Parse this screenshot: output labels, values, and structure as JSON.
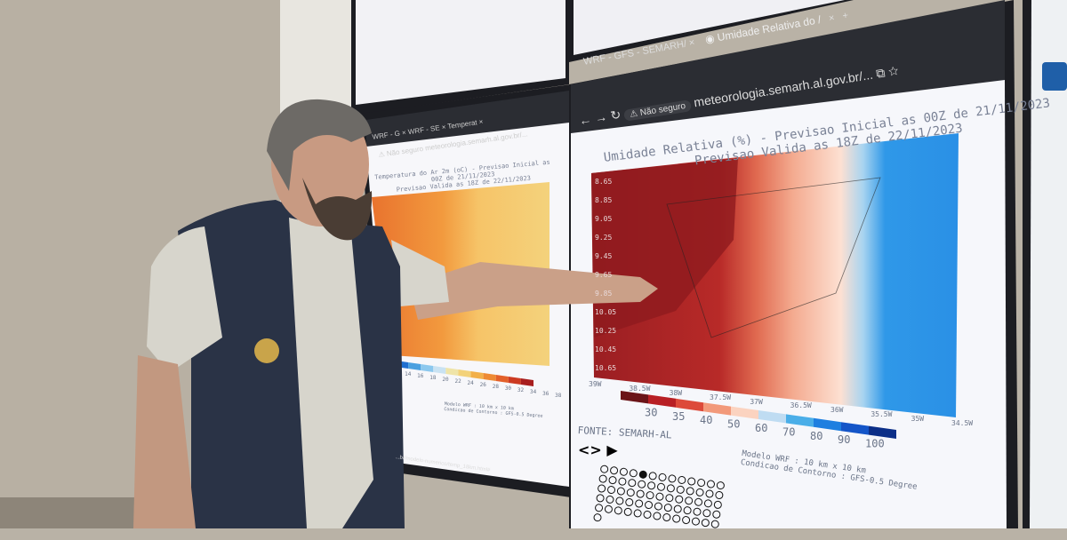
{
  "right_browser": {
    "tabs": [
      {
        "label": "WRF - GFS - SEMARH/"
      },
      {
        "label": "Umidade Relativa do /"
      }
    ],
    "security_label": "Não seguro",
    "url": "meteorologia.semarh.al.gov.br/...",
    "new_tab": "+",
    "close_tab": "×"
  },
  "right_chart": {
    "title_line1": "Umidade Relativa (%) - Previsao Inicial as 00Z de 21/11/2023",
    "title_line2": "Previsao Valida as 18Z de 22/11/2023",
    "x_ticks": [
      "39W",
      "38.5W",
      "38W",
      "37.5W",
      "37W",
      "36.5W",
      "36W",
      "35.5W",
      "35W",
      "34.5W"
    ],
    "y_ticks": [
      "8.65",
      "8.85",
      "9.05",
      "9.25",
      "9.45",
      "9.65",
      "9.85",
      "10.05",
      "10.25",
      "10.45",
      "10.65"
    ],
    "legend_values": [
      "30",
      "35",
      "40",
      "50",
      "60",
      "70",
      "80",
      "90",
      "100"
    ],
    "legend_colors": [
      "#6b1418",
      "#b81f24",
      "#dd4a3a",
      "#f2997a",
      "#fbd3c0",
      "#bfdcf2",
      "#4aaee8",
      "#1e7fe0",
      "#1455c8",
      "#0c2f88"
    ],
    "source": "FONTE: SEMARH-AL",
    "model_line": "Modelo WRF : 10 km x 10 km",
    "boundary_line": "Condicao de Contorno : GFS-0.5 Degree",
    "nav_prev": "<",
    "nav_next": ">",
    "play": "▶"
  },
  "left_browser": {
    "tabs": [
      {
        "label": "WRF - G"
      },
      {
        "label": "WRF - SE"
      },
      {
        "label": "Temperat"
      }
    ],
    "security_label": "Não seguro",
    "url": "meteorologia.semarh.al.gov.br/...",
    "status_url": "...br/modelo-numerico/temp_18km.html#"
  },
  "left_chart": {
    "title_line1": "Temperatura do Ar 2m (oC) - Previsao Inicial as 00Z de 21/11/2023",
    "title_line2": "Previsao Valida as 18Z de 22/11/2023",
    "legend_values": [
      "14",
      "16",
      "18",
      "20",
      "22",
      "24",
      "26",
      "28",
      "30",
      "32",
      "34",
      "36",
      "38"
    ],
    "legend_colors": [
      "#1f6fd0",
      "#4aa0e0",
      "#8cc8ee",
      "#c9e2f2",
      "#efe4a8",
      "#f3d27a",
      "#f2b04a",
      "#ee8a34",
      "#e3602a",
      "#cc3a22",
      "#a81e1e"
    ],
    "model_line": "Modelo WRF : 10 km x 10 km",
    "boundary_line": "Condicao de Contorno : GFS-0.5 Degree"
  },
  "colors": {
    "wall": "#b9b2a6",
    "bezel": "#1c1d22",
    "vest": "#2a3346",
    "shirt": "#d7d5cc"
  }
}
